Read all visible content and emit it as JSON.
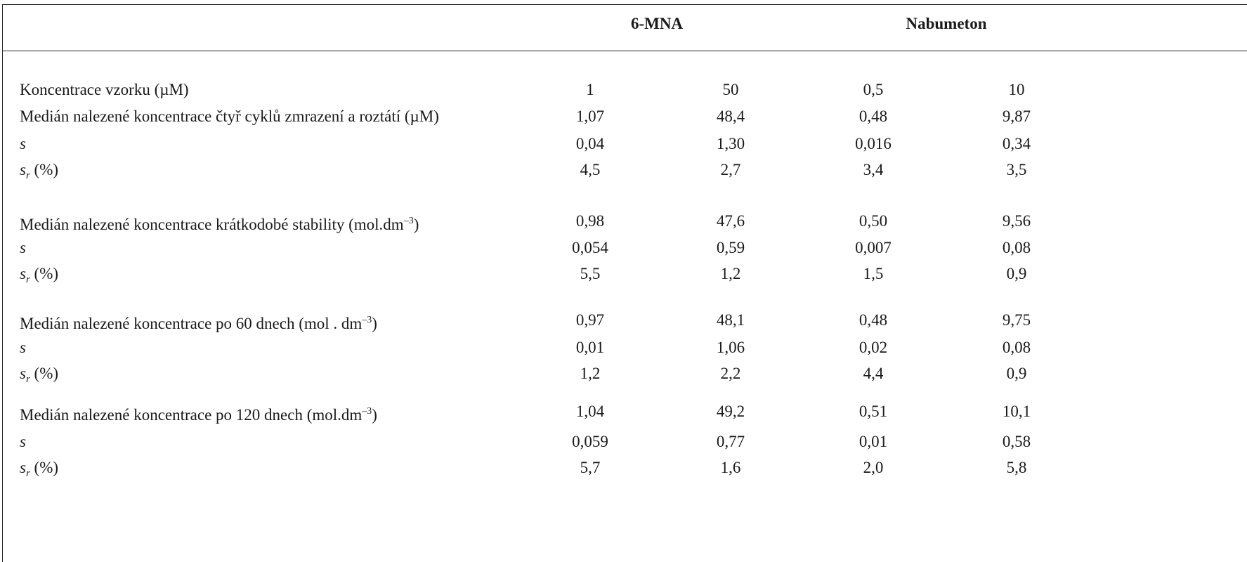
{
  "table": {
    "groups": [
      "6-MNA",
      "Nabumeton"
    ],
    "rows": [
      {
        "label": "Koncentrace vzorku (µM)",
        "values": [
          "1",
          "50",
          "0,5",
          "10"
        ]
      },
      {
        "label": "Medián nalezené koncentrace čtyř cyklů zmrazení a roztátí (µM)",
        "values": [
          "1,07",
          "48,4",
          "0,48",
          "9,87"
        ]
      },
      {
        "label": "s",
        "values": [
          "0,04",
          "1,30",
          "0,016",
          "0,34"
        ]
      },
      {
        "label": "r",
        "label_unit": "(%)",
        "values": [
          "4,5",
          "2,7",
          "3,4",
          "3,5"
        ]
      },
      {
        "label": "Medián nalezené koncentrace krátkodobé stability (mol.dm",
        "label_sup": "–3",
        "label_end": ")",
        "values": [
          "0,98",
          "47,6",
          "0,50",
          "9,56"
        ]
      },
      {
        "label": "s",
        "values": [
          "0,054",
          "0,59",
          "0,007",
          "0,08"
        ]
      },
      {
        "label": "r",
        "label_unit": "(%)",
        "values": [
          "5,5",
          "1,2",
          "1,5",
          "0,9"
        ]
      },
      {
        "label": "Medián nalezené koncentrace po 60 dnech (mol . dm",
        "label_sup": "–3",
        "label_end": ")",
        "values": [
          "0,97",
          "48,1",
          "0,48",
          "9,75"
        ]
      },
      {
        "label": "s",
        "values": [
          "0,01",
          "1,06",
          "0,02",
          "0,08"
        ]
      },
      {
        "label": "r",
        "label_unit": "(%)",
        "values": [
          "1,2",
          "2,2",
          "4,4",
          "0,9"
        ]
      },
      {
        "label": "Medián nalezené koncentrace po 120 dnech (mol.dm",
        "label_sup": "–3",
        "label_end": ")",
        "values": [
          "1,04",
          "49,2",
          "0,51",
          "10,1"
        ]
      },
      {
        "label": "s",
        "values": [
          "0,059",
          "0,77",
          "0,01",
          "0,58"
        ]
      },
      {
        "label": "r",
        "label_unit": "(%)",
        "values": [
          "5,7",
          "1,6",
          "2,0",
          "5,8"
        ]
      }
    ]
  }
}
